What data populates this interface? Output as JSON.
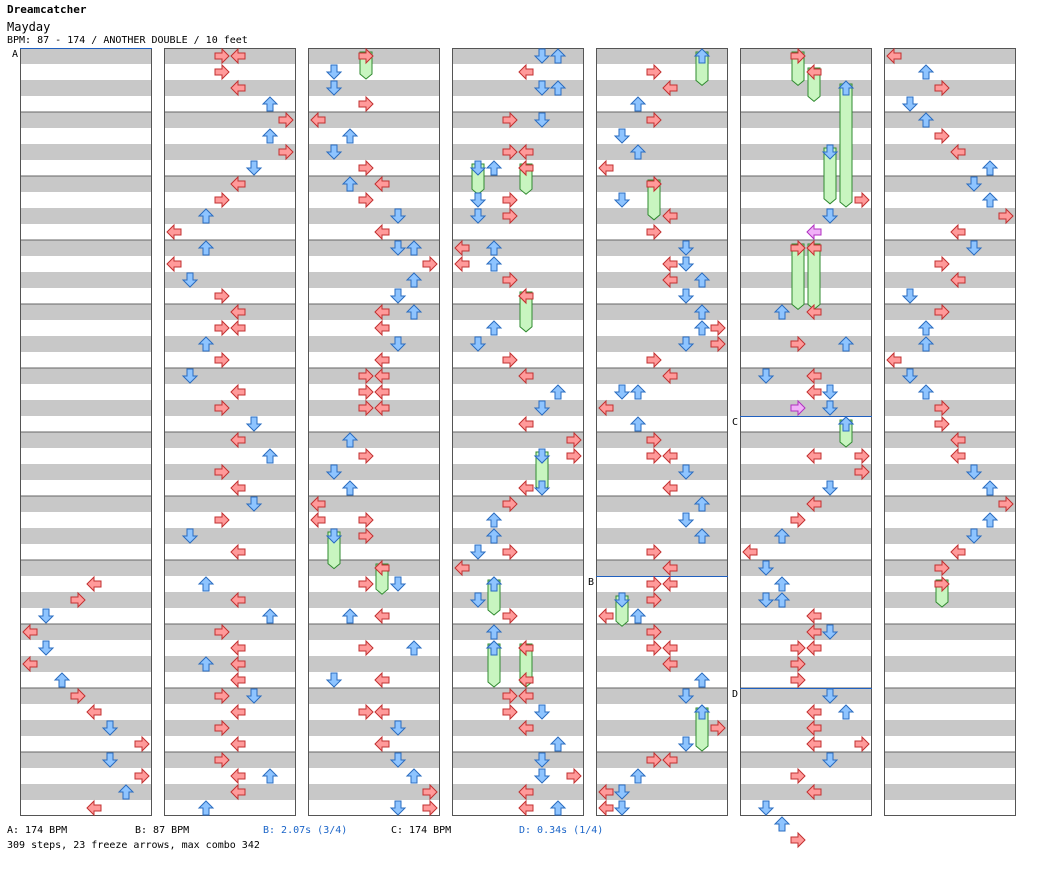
{
  "header": {
    "artist": "Dreamcatcher",
    "title": "Mayday",
    "info": "BPM: 87 - 174 / ANOTHER DOUBLE / 10 feet"
  },
  "footer": {
    "bpm_a": "A: 174 BPM",
    "bpm_b": "B: 87 BPM",
    "stop_b": "B: 2.07s (3/4)",
    "bpm_c": "C: 174 BPM",
    "stop_d": "D: 0.34s (1/4)",
    "stats": "309 steps, 23 freeze arrows, max combo 342"
  },
  "colors": {
    "lane_stripe": "#c8c8c8",
    "lane_border": "#555555",
    "red_arrow": "#ff9a9a",
    "red_stroke": "#c23030",
    "blue_arrow": "#8ec4ff",
    "blue_stroke": "#2a6cc0",
    "freeze_fill": "#c8f5c0",
    "freeze_stroke": "#2f8a2f",
    "shock_fill": "#f0b0f8",
    "shock_stroke": "#b030c0",
    "marker_line": "#2060c0"
  },
  "markers": [
    {
      "label": "A",
      "col": 0,
      "beat": 0
    },
    {
      "label": "B",
      "col": 4,
      "beat": 33
    },
    {
      "label": "C",
      "col": 5,
      "beat": 23
    },
    {
      "label": "D",
      "col": 5,
      "beat": 40
    }
  ],
  "notes": [
    {
      "c": 0,
      "b": 33,
      "l": 4
    },
    {
      "c": 0,
      "b": 34,
      "l": 3
    },
    {
      "c": 0,
      "b": 35,
      "l": 1
    },
    {
      "c": 0,
      "b": 36,
      "l": 0
    },
    {
      "c": 0,
      "b": 37,
      "l": 1
    },
    {
      "c": 0,
      "b": 38,
      "l": 0
    },
    {
      "c": 0,
      "b": 39,
      "l": 2
    },
    {
      "c": 0,
      "b": 40,
      "l": 3
    },
    {
      "c": 0,
      "b": 41,
      "l": 4
    },
    {
      "c": 0,
      "b": 42,
      "l": 5
    },
    {
      "c": 0,
      "b": 43,
      "l": 7
    },
    {
      "c": 0,
      "b": 44,
      "l": 5
    },
    {
      "c": 0,
      "b": 45,
      "l": 7
    },
    {
      "c": 0,
      "b": 46,
      "l": 6
    },
    {
      "c": 0,
      "b": 47,
      "l": 4
    },
    {
      "c": 1,
      "b": 0,
      "l": 3
    },
    {
      "c": 1,
      "b": 0,
      "l": 4
    },
    {
      "c": 1,
      "b": 1,
      "l": 3
    },
    {
      "c": 1,
      "b": 2,
      "l": 4
    },
    {
      "c": 1,
      "b": 3,
      "l": 6
    },
    {
      "c": 1,
      "b": 4,
      "l": 7
    },
    {
      "c": 1,
      "b": 5,
      "l": 6
    },
    {
      "c": 1,
      "b": 6,
      "l": 7
    },
    {
      "c": 1,
      "b": 7,
      "l": 5
    },
    {
      "c": 1,
      "b": 8,
      "l": 4
    },
    {
      "c": 1,
      "b": 9,
      "l": 3
    },
    {
      "c": 1,
      "b": 10,
      "l": 2
    },
    {
      "c": 1,
      "b": 11,
      "l": 0
    },
    {
      "c": 1,
      "b": 12,
      "l": 2
    },
    {
      "c": 1,
      "b": 13,
      "l": 0
    },
    {
      "c": 1,
      "b": 14,
      "l": 1
    },
    {
      "c": 1,
      "b": 15,
      "l": 3
    },
    {
      "c": 1,
      "b": 16,
      "l": 4
    },
    {
      "c": 1,
      "b": 17,
      "l": 3
    },
    {
      "c": 1,
      "b": 17,
      "l": 4
    },
    {
      "c": 1,
      "b": 18,
      "l": 2
    },
    {
      "c": 1,
      "b": 19,
      "l": 3
    },
    {
      "c": 1,
      "b": 20,
      "l": 1
    },
    {
      "c": 1,
      "b": 21,
      "l": 4
    },
    {
      "c": 1,
      "b": 22,
      "l": 3
    },
    {
      "c": 1,
      "b": 23,
      "l": 5
    },
    {
      "c": 1,
      "b": 24,
      "l": 4
    },
    {
      "c": 1,
      "b": 25,
      "l": 6
    },
    {
      "c": 1,
      "b": 26,
      "l": 3
    },
    {
      "c": 1,
      "b": 27,
      "l": 4
    },
    {
      "c": 1,
      "b": 28,
      "l": 5
    },
    {
      "c": 1,
      "b": 29,
      "l": 3
    },
    {
      "c": 1,
      "b": 30,
      "l": 1
    },
    {
      "c": 1,
      "b": 31,
      "l": 4
    },
    {
      "c": 1,
      "b": 33,
      "l": 2
    },
    {
      "c": 1,
      "b": 34,
      "l": 4
    },
    {
      "c": 1,
      "b": 35,
      "l": 6
    },
    {
      "c": 1,
      "b": 36,
      "l": 3
    },
    {
      "c": 1,
      "b": 37,
      "l": 4
    },
    {
      "c": 1,
      "b": 38,
      "l": 2
    },
    {
      "c": 1,
      "b": 38,
      "l": 4
    },
    {
      "c": 1,
      "b": 39,
      "l": 4
    },
    {
      "c": 1,
      "b": 40,
      "l": 3
    },
    {
      "c": 1,
      "b": 40,
      "l": 5
    },
    {
      "c": 1,
      "b": 41,
      "l": 4
    },
    {
      "c": 1,
      "b": 42,
      "l": 3
    },
    {
      "c": 1,
      "b": 43,
      "l": 4
    },
    {
      "c": 1,
      "b": 44,
      "l": 3
    },
    {
      "c": 1,
      "b": 45,
      "l": 4
    },
    {
      "c": 1,
      "b": 45,
      "l": 6
    },
    {
      "c": 1,
      "b": 46,
      "l": 4
    },
    {
      "c": 1,
      "b": 47,
      "l": 2
    },
    {
      "c": 2,
      "b": 1,
      "l": 1
    },
    {
      "c": 2,
      "b": 0,
      "l": 3,
      "f": 1
    },
    {
      "c": 2,
      "b": 2,
      "l": 1
    },
    {
      "c": 2,
      "b": 3,
      "l": 3
    },
    {
      "c": 2,
      "b": 4,
      "l": 0
    },
    {
      "c": 2,
      "b": 5,
      "l": 2
    },
    {
      "c": 2,
      "b": 6,
      "l": 1
    },
    {
      "c": 2,
      "b": 7,
      "l": 3
    },
    {
      "c": 2,
      "b": 8,
      "l": 2
    },
    {
      "c": 2,
      "b": 8,
      "l": 4
    },
    {
      "c": 2,
      "b": 9,
      "l": 3
    },
    {
      "c": 2,
      "b": 10,
      "l": 5
    },
    {
      "c": 2,
      "b": 11,
      "l": 4
    },
    {
      "c": 2,
      "b": 12,
      "l": 5
    },
    {
      "c": 2,
      "b": 12,
      "l": 6
    },
    {
      "c": 2,
      "b": 13,
      "l": 7
    },
    {
      "c": 2,
      "b": 14,
      "l": 6
    },
    {
      "c": 2,
      "b": 15,
      "l": 5
    },
    {
      "c": 2,
      "b": 16,
      "l": 4
    },
    {
      "c": 2,
      "b": 16,
      "l": 6
    },
    {
      "c": 2,
      "b": 17,
      "l": 4
    },
    {
      "c": 2,
      "b": 18,
      "l": 5
    },
    {
      "c": 2,
      "b": 19,
      "l": 4
    },
    {
      "c": 2,
      "b": 20,
      "l": 3
    },
    {
      "c": 2,
      "b": 20,
      "l": 4
    },
    {
      "c": 2,
      "b": 21,
      "l": 3
    },
    {
      "c": 2,
      "b": 21,
      "l": 4
    },
    {
      "c": 2,
      "b": 22,
      "l": 3
    },
    {
      "c": 2,
      "b": 22,
      "l": 4
    },
    {
      "c": 2,
      "b": 24,
      "l": 2
    },
    {
      "c": 2,
      "b": 25,
      "l": 3
    },
    {
      "c": 2,
      "b": 26,
      "l": 1
    },
    {
      "c": 2,
      "b": 27,
      "l": 2
    },
    {
      "c": 2,
      "b": 28,
      "l": 0
    },
    {
      "c": 2,
      "b": 29,
      "l": 0
    },
    {
      "c": 2,
      "b": 29,
      "l": 3
    },
    {
      "c": 2,
      "b": 30,
      "l": 3
    },
    {
      "c": 2,
      "b": 30,
      "l": 1,
      "f": 1.6
    },
    {
      "c": 2,
      "b": 32,
      "l": 4,
      "f": 1.2
    },
    {
      "c": 2,
      "b": 33,
      "l": 3
    },
    {
      "c": 2,
      "b": 33,
      "l": 5
    },
    {
      "c": 2,
      "b": 35,
      "l": 2
    },
    {
      "c": 2,
      "b": 35,
      "l": 4
    },
    {
      "c": 2,
      "b": 37,
      "l": 3
    },
    {
      "c": 2,
      "b": 37,
      "l": 6
    },
    {
      "c": 2,
      "b": 39,
      "l": 1
    },
    {
      "c": 2,
      "b": 39,
      "l": 4
    },
    {
      "c": 2,
      "b": 41,
      "l": 3
    },
    {
      "c": 2,
      "b": 41,
      "l": 4
    },
    {
      "c": 2,
      "b": 42,
      "l": 5
    },
    {
      "c": 2,
      "b": 43,
      "l": 4
    },
    {
      "c": 2,
      "b": 44,
      "l": 5
    },
    {
      "c": 2,
      "b": 45,
      "l": 6
    },
    {
      "c": 2,
      "b": 46,
      "l": 7
    },
    {
      "c": 2,
      "b": 47,
      "l": 5
    },
    {
      "c": 2,
      "b": 47,
      "l": 7
    },
    {
      "c": 3,
      "b": 0,
      "l": 5
    },
    {
      "c": 3,
      "b": 0,
      "l": 6
    },
    {
      "c": 3,
      "b": 1,
      "l": 4
    },
    {
      "c": 3,
      "b": 2,
      "l": 5
    },
    {
      "c": 3,
      "b": 2,
      "l": 6
    },
    {
      "c": 3,
      "b": 4,
      "l": 3
    },
    {
      "c": 3,
      "b": 4,
      "l": 5
    },
    {
      "c": 3,
      "b": 6,
      "l": 3
    },
    {
      "c": 3,
      "b": 6,
      "l": 4
    },
    {
      "c": 3,
      "b": 7,
      "l": 2
    },
    {
      "c": 3,
      "b": 7,
      "l": 4
    },
    {
      "c": 3,
      "b": 7,
      "l": 1,
      "f": 1.2
    },
    {
      "c": 3,
      "b": 7,
      "l": 4,
      "f": 1.2
    },
    {
      "c": 3,
      "b": 9,
      "l": 1
    },
    {
      "c": 3,
      "b": 9,
      "l": 3
    },
    {
      "c": 3,
      "b": 10,
      "l": 1
    },
    {
      "c": 3,
      "b": 10,
      "l": 3
    },
    {
      "c": 3,
      "b": 12,
      "l": 0
    },
    {
      "c": 3,
      "b": 12,
      "l": 2
    },
    {
      "c": 3,
      "b": 13,
      "l": 0
    },
    {
      "c": 3,
      "b": 13,
      "l": 2
    },
    {
      "c": 3,
      "b": 14,
      "l": 3
    },
    {
      "c": 3,
      "b": 15,
      "l": 4
    },
    {
      "c": 3,
      "b": 15,
      "l": 4,
      "f": 1.8
    },
    {
      "c": 3,
      "b": 17,
      "l": 2
    },
    {
      "c": 3,
      "b": 18,
      "l": 1
    },
    {
      "c": 3,
      "b": 19,
      "l": 3
    },
    {
      "c": 3,
      "b": 20,
      "l": 4
    },
    {
      "c": 3,
      "b": 21,
      "l": 6
    },
    {
      "c": 3,
      "b": 22,
      "l": 5
    },
    {
      "c": 3,
      "b": 23,
      "l": 4
    },
    {
      "c": 3,
      "b": 24,
      "l": 7
    },
    {
      "c": 3,
      "b": 25,
      "l": 7
    },
    {
      "c": 3,
      "b": 25,
      "l": 5
    },
    {
      "c": 3,
      "b": 25,
      "l": 5,
      "f": 1.8
    },
    {
      "c": 3,
      "b": 27,
      "l": 4
    },
    {
      "c": 3,
      "b": 27,
      "l": 5
    },
    {
      "c": 3,
      "b": 28,
      "l": 3
    },
    {
      "c": 3,
      "b": 29,
      "l": 2
    },
    {
      "c": 3,
      "b": 30,
      "l": 2
    },
    {
      "c": 3,
      "b": 31,
      "l": 1
    },
    {
      "c": 3,
      "b": 31,
      "l": 3
    },
    {
      "c": 3,
      "b": 32,
      "l": 0
    },
    {
      "c": 3,
      "b": 33,
      "l": 2
    },
    {
      "c": 3,
      "b": 33,
      "l": 2,
      "f": 1.5
    },
    {
      "c": 3,
      "b": 34,
      "l": 1
    },
    {
      "c": 3,
      "b": 35,
      "l": 3
    },
    {
      "c": 3,
      "b": 36,
      "l": 2
    },
    {
      "c": 3,
      "b": 37,
      "l": 2
    },
    {
      "c": 3,
      "b": 37,
      "l": 4
    },
    {
      "c": 3,
      "b": 37,
      "l": 2,
      "f": 2
    },
    {
      "c": 3,
      "b": 37,
      "l": 4,
      "f": 2
    },
    {
      "c": 3,
      "b": 39,
      "l": 4
    },
    {
      "c": 3,
      "b": 40,
      "l": 3
    },
    {
      "c": 3,
      "b": 40,
      "l": 4
    },
    {
      "c": 3,
      "b": 41,
      "l": 3
    },
    {
      "c": 3,
      "b": 41,
      "l": 5
    },
    {
      "c": 3,
      "b": 42,
      "l": 4
    },
    {
      "c": 3,
      "b": 43,
      "l": 6
    },
    {
      "c": 3,
      "b": 44,
      "l": 5
    },
    {
      "c": 3,
      "b": 45,
      "l": 5
    },
    {
      "c": 3,
      "b": 45,
      "l": 7
    },
    {
      "c": 3,
      "b": 46,
      "l": 4
    },
    {
      "c": 3,
      "b": 47,
      "l": 4
    },
    {
      "c": 3,
      "b": 47,
      "l": 6
    },
    {
      "c": 4,
      "b": 0,
      "l": 6,
      "f": 1.4
    },
    {
      "c": 4,
      "b": 1,
      "l": 3
    },
    {
      "c": 4,
      "b": 2,
      "l": 4
    },
    {
      "c": 4,
      "b": 3,
      "l": 2
    },
    {
      "c": 4,
      "b": 4,
      "l": 3
    },
    {
      "c": 4,
      "b": 5,
      "l": 1
    },
    {
      "c": 4,
      "b": 6,
      "l": 2
    },
    {
      "c": 4,
      "b": 7,
      "l": 0
    },
    {
      "c": 4,
      "b": 8,
      "l": 3
    },
    {
      "c": 4,
      "b": 9,
      "l": 1
    },
    {
      "c": 4,
      "b": 8,
      "l": 3,
      "f": 1.8
    },
    {
      "c": 4,
      "b": 10,
      "l": 4
    },
    {
      "c": 4,
      "b": 11,
      "l": 3
    },
    {
      "c": 4,
      "b": 12,
      "l": 5
    },
    {
      "c": 4,
      "b": 13,
      "l": 4
    },
    {
      "c": 4,
      "b": 13,
      "l": 5
    },
    {
      "c": 4,
      "b": 14,
      "l": 4
    },
    {
      "c": 4,
      "b": 14,
      "l": 6
    },
    {
      "c": 4,
      "b": 15,
      "l": 5
    },
    {
      "c": 4,
      "b": 16,
      "l": 6
    },
    {
      "c": 4,
      "b": 17,
      "l": 6
    },
    {
      "c": 4,
      "b": 17,
      "l": 7
    },
    {
      "c": 4,
      "b": 18,
      "l": 5
    },
    {
      "c": 4,
      "b": 18,
      "l": 7
    },
    {
      "c": 4,
      "b": 19,
      "l": 3
    },
    {
      "c": 4,
      "b": 20,
      "l": 4
    },
    {
      "c": 4,
      "b": 21,
      "l": 2
    },
    {
      "c": 4,
      "b": 21,
      "l": 1
    },
    {
      "c": 4,
      "b": 22,
      "l": 0
    },
    {
      "c": 4,
      "b": 23,
      "l": 2
    },
    {
      "c": 4,
      "b": 24,
      "l": 3
    },
    {
      "c": 4,
      "b": 25,
      "l": 3
    },
    {
      "c": 4,
      "b": 25,
      "l": 4
    },
    {
      "c": 4,
      "b": 26,
      "l": 5
    },
    {
      "c": 4,
      "b": 27,
      "l": 4
    },
    {
      "c": 4,
      "b": 28,
      "l": 6
    },
    {
      "c": 4,
      "b": 29,
      "l": 5
    },
    {
      "c": 4,
      "b": 30,
      "l": 6
    },
    {
      "c": 4,
      "b": 31,
      "l": 3
    },
    {
      "c": 4,
      "b": 32,
      "l": 4
    },
    {
      "c": 4,
      "b": 33,
      "l": 3
    },
    {
      "c": 4,
      "b": 33,
      "l": 4
    },
    {
      "c": 4,
      "b": 34,
      "l": 3
    },
    {
      "c": 4,
      "b": 35,
      "l": 0
    },
    {
      "c": 4,
      "b": 34,
      "l": 1,
      "f": 1.2
    },
    {
      "c": 4,
      "b": 35,
      "l": 2
    },
    {
      "c": 4,
      "b": 36,
      "l": 3
    },
    {
      "c": 4,
      "b": 37,
      "l": 3
    },
    {
      "c": 4,
      "b": 37,
      "l": 4
    },
    {
      "c": 4,
      "b": 38,
      "l": 4
    },
    {
      "c": 4,
      "b": 39,
      "l": 6
    },
    {
      "c": 4,
      "b": 40,
      "l": 5
    },
    {
      "c": 4,
      "b": 41,
      "l": 6
    },
    {
      "c": 4,
      "b": 41,
      "l": 6,
      "f": 2
    },
    {
      "c": 4,
      "b": 42,
      "l": 7
    },
    {
      "c": 4,
      "b": 43,
      "l": 5
    },
    {
      "c": 4,
      "b": 44,
      "l": 4
    },
    {
      "c": 4,
      "b": 44,
      "l": 3
    },
    {
      "c": 4,
      "b": 45,
      "l": 2
    },
    {
      "c": 4,
      "b": 46,
      "l": 0
    },
    {
      "c": 4,
      "b": 46,
      "l": 1
    },
    {
      "c": 4,
      "b": 47,
      "l": 0
    },
    {
      "c": 4,
      "b": 47,
      "l": 1
    },
    {
      "c": 5,
      "b": 0,
      "l": 3,
      "f": 1.4
    },
    {
      "c": 5,
      "b": 1,
      "l": 4,
      "f": 1.4
    },
    {
      "c": 5,
      "b": 2,
      "l": 6,
      "f": 7
    },
    {
      "c": 5,
      "b": 6,
      "l": 5,
      "f": 2.8
    },
    {
      "c": 5,
      "b": 9,
      "l": 7
    },
    {
      "c": 5,
      "b": 10,
      "l": 5
    },
    {
      "c": 5,
      "b": 11,
      "l": 4,
      "s": 1
    },
    {
      "c": 5,
      "b": 12,
      "l": 3,
      "f": 3.4
    },
    {
      "c": 5,
      "b": 12,
      "l": 4,
      "f": 3.4
    },
    {
      "c": 5,
      "b": 16,
      "l": 2
    },
    {
      "c": 5,
      "b": 16,
      "l": 4
    },
    {
      "c": 5,
      "b": 18,
      "l": 3
    },
    {
      "c": 5,
      "b": 18,
      "l": 6
    },
    {
      "c": 5,
      "b": 20,
      "l": 1
    },
    {
      "c": 5,
      "b": 20,
      "l": 4
    },
    {
      "c": 5,
      "b": 21,
      "l": 4
    },
    {
      "c": 5,
      "b": 21,
      "l": 5
    },
    {
      "c": 5,
      "b": 22,
      "l": 3,
      "s": 1
    },
    {
      "c": 5,
      "b": 22,
      "l": 5
    },
    {
      "c": 5,
      "b": 23,
      "l": 6
    },
    {
      "c": 5,
      "b": 23,
      "l": 6,
      "f": 1
    },
    {
      "c": 5,
      "b": 25,
      "l": 4
    },
    {
      "c": 5,
      "b": 25,
      "l": 7
    },
    {
      "c": 5,
      "b": 26,
      "l": 7
    },
    {
      "c": 5,
      "b": 27,
      "l": 5
    },
    {
      "c": 5,
      "b": 28,
      "l": 4
    },
    {
      "c": 5,
      "b": 29,
      "l": 3
    },
    {
      "c": 5,
      "b": 30,
      "l": 2
    },
    {
      "c": 5,
      "b": 31,
      "l": 0
    },
    {
      "c": 5,
      "b": 32,
      "l": 1
    },
    {
      "c": 5,
      "b": 33,
      "l": 2
    },
    {
      "c": 5,
      "b": 34,
      "l": 1
    },
    {
      "c": 5,
      "b": 34,
      "l": 2
    },
    {
      "c": 5,
      "b": 35,
      "l": 4
    },
    {
      "c": 5,
      "b": 36,
      "l": 5
    },
    {
      "c": 5,
      "b": 36,
      "l": 4
    },
    {
      "c": 5,
      "b": 37,
      "l": 3
    },
    {
      "c": 5,
      "b": 37,
      "l": 4
    },
    {
      "c": 5,
      "b": 38,
      "l": 3
    },
    {
      "c": 5,
      "b": 39,
      "l": 3
    },
    {
      "c": 5,
      "b": 40,
      "l": 5
    },
    {
      "c": 5,
      "b": 41,
      "l": 4
    },
    {
      "c": 5,
      "b": 41,
      "l": 6
    },
    {
      "c": 5,
      "b": 42,
      "l": 4
    },
    {
      "c": 5,
      "b": 43,
      "l": 4
    },
    {
      "c": 5,
      "b": 43,
      "l": 7
    },
    {
      "c": 5,
      "b": 44,
      "l": 5
    },
    {
      "c": 5,
      "b": 45,
      "l": 3
    },
    {
      "c": 5,
      "b": 46,
      "l": 4
    },
    {
      "c": 5,
      "b": 47,
      "l": 1
    },
    {
      "c": 5,
      "b": 48,
      "l": 2
    },
    {
      "c": 5,
      "b": 49,
      "l": 3
    },
    {
      "c": 6,
      "b": 0,
      "l": 0
    },
    {
      "c": 6,
      "b": 1,
      "l": 2
    },
    {
      "c": 6,
      "b": 2,
      "l": 3
    },
    {
      "c": 6,
      "b": 3,
      "l": 1
    },
    {
      "c": 6,
      "b": 4,
      "l": 2
    },
    {
      "c": 6,
      "b": 5,
      "l": 3
    },
    {
      "c": 6,
      "b": 6,
      "l": 4
    },
    {
      "c": 6,
      "b": 7,
      "l": 6
    },
    {
      "c": 6,
      "b": 8,
      "l": 5
    },
    {
      "c": 6,
      "b": 9,
      "l": 6
    },
    {
      "c": 6,
      "b": 10,
      "l": 7
    },
    {
      "c": 6,
      "b": 11,
      "l": 4
    },
    {
      "c": 6,
      "b": 12,
      "l": 5
    },
    {
      "c": 6,
      "b": 13,
      "l": 3
    },
    {
      "c": 6,
      "b": 14,
      "l": 4
    },
    {
      "c": 6,
      "b": 15,
      "l": 1
    },
    {
      "c": 6,
      "b": 16,
      "l": 3
    },
    {
      "c": 6,
      "b": 17,
      "l": 2
    },
    {
      "c": 6,
      "b": 18,
      "l": 2
    },
    {
      "c": 6,
      "b": 19,
      "l": 0
    },
    {
      "c": 6,
      "b": 20,
      "l": 1
    },
    {
      "c": 6,
      "b": 21,
      "l": 2
    },
    {
      "c": 6,
      "b": 22,
      "l": 3
    },
    {
      "c": 6,
      "b": 23,
      "l": 3
    },
    {
      "c": 6,
      "b": 24,
      "l": 4
    },
    {
      "c": 6,
      "b": 25,
      "l": 4
    },
    {
      "c": 6,
      "b": 26,
      "l": 5
    },
    {
      "c": 6,
      "b": 27,
      "l": 6
    },
    {
      "c": 6,
      "b": 28,
      "l": 7
    },
    {
      "c": 6,
      "b": 29,
      "l": 6
    },
    {
      "c": 6,
      "b": 30,
      "l": 5
    },
    {
      "c": 6,
      "b": 31,
      "l": 4
    },
    {
      "c": 6,
      "b": 32,
      "l": 3
    },
    {
      "c": 6,
      "b": 33,
      "l": 3,
      "f": 1
    }
  ]
}
